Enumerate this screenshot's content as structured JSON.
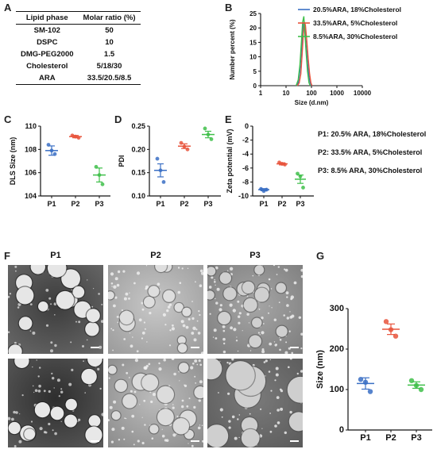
{
  "panels": {
    "A": "A",
    "B": "B",
    "C": "C",
    "D": "D",
    "E": "E",
    "F": "F",
    "G": "G"
  },
  "tableA": {
    "headers": [
      "Lipid phase",
      "Molar ratio (%)"
    ],
    "rows": [
      [
        "SM-102",
        "50"
      ],
      [
        "DSPC",
        "10"
      ],
      [
        "DMG-PEG2000",
        "1.5"
      ],
      [
        "Cholesterol",
        "5/18/30"
      ],
      [
        "ARA",
        "33.5/20.5/8.5"
      ]
    ]
  },
  "legendE": {
    "p1": "P1: 20.5% ARA, 18%Cholesterol",
    "p2": "P2: 33.5% ARA, 5%Cholesterol",
    "p3": "P3: 8.5% ARA, 30%Cholesterol"
  },
  "temF": {
    "labels": [
      "P1",
      "P2",
      "P3"
    ]
  },
  "colors": {
    "blue": "#3a6fc4",
    "red": "#e8543c",
    "green": "#3fbf4a"
  },
  "chart_data": [
    {
      "id": "B",
      "type": "line",
      "xlabel": "Size (d.nm)",
      "ylabel": "Number percent (%)",
      "xscale": "log",
      "xlim": [
        1,
        10000
      ],
      "ylim": [
        0,
        25
      ],
      "xticks": [
        "1",
        "10",
        "100",
        "1000",
        "10000"
      ],
      "yticks": [
        "0",
        "5",
        "10",
        "15",
        "20",
        "25"
      ],
      "legend_position": "top-right",
      "series": [
        {
          "name": "20.5%ARA, 18%Cholesterol",
          "color": "#3a6fc4",
          "x": [
            25,
            30,
            35,
            40,
            45,
            50,
            55,
            60,
            70,
            80,
            90,
            100
          ],
          "y": [
            0,
            1,
            5,
            12,
            19,
            22,
            20,
            15,
            8,
            3,
            1,
            0
          ]
        },
        {
          "name": "33.5%ARA, 5%Cholesterol",
          "color": "#e8543c",
          "x": [
            28,
            33,
            38,
            43,
            48,
            53,
            58,
            65,
            75,
            85,
            95,
            105
          ],
          "y": [
            0,
            1,
            4,
            11,
            18,
            22,
            21,
            16,
            9,
            4,
            1,
            0
          ]
        },
        {
          "name": "8.5%ARA, 30%Cholesterol",
          "color": "#3fbf4a",
          "x": [
            25,
            30,
            35,
            40,
            45,
            50,
            55,
            62,
            70,
            80,
            90
          ],
          "y": [
            0,
            2,
            7,
            15,
            22,
            24,
            18,
            11,
            5,
            1,
            0
          ]
        }
      ]
    },
    {
      "id": "C",
      "type": "scatter",
      "ylabel": "DLS Size (nm)",
      "ylim": [
        104,
        110
      ],
      "yticks": [
        "104",
        "106",
        "108",
        "110"
      ],
      "categories": [
        "P1",
        "P2",
        "P3"
      ],
      "points": [
        [
          108.4,
          107.9,
          107.6
        ],
        [
          109.2,
          109.1,
          109.0
        ],
        [
          106.5,
          105.8,
          105.0
        ]
      ],
      "mean": [
        107.9,
        109.1,
        105.8
      ],
      "sem": [
        0.4,
        0.1,
        0.6
      ]
    },
    {
      "id": "D",
      "type": "scatter",
      "ylabel": "PDI",
      "ylim": [
        0.1,
        0.25
      ],
      "yticks": [
        "0.10",
        "0.15",
        "0.20",
        "0.25"
      ],
      "categories": [
        "P1",
        "P2",
        "P3"
      ],
      "points": [
        [
          0.18,
          0.155,
          0.13
        ],
        [
          0.214,
          0.206,
          0.2
        ],
        [
          0.245,
          0.232,
          0.222
        ]
      ],
      "mean": [
        0.155,
        0.207,
        0.232
      ],
      "sem": [
        0.014,
        0.005,
        0.007
      ]
    },
    {
      "id": "E",
      "type": "scatter",
      "ylabel": "Zeta potential (mV)",
      "ylim": [
        -10,
        0
      ],
      "yticks": [
        "-10",
        "-8",
        "-6",
        "-4",
        "-2",
        "0"
      ],
      "categories": [
        "P1",
        "P2",
        "P3"
      ],
      "points": [
        [
          -9.0,
          -9.3,
          -9.1
        ],
        [
          -5.2,
          -5.4,
          -5.5
        ],
        [
          -6.8,
          -7.2,
          -8.8
        ]
      ],
      "mean": [
        -9.1,
        -5.4,
        -7.6
      ],
      "sem": [
        0.15,
        0.15,
        0.6
      ]
    },
    {
      "id": "G",
      "type": "scatter",
      "ylabel": "Size (nm)",
      "ylim": [
        0,
        300
      ],
      "yticks": [
        "0",
        "100",
        "200",
        "300"
      ],
      "categories": [
        "P1",
        "P2",
        "P3"
      ],
      "points": [
        [
          125,
          118,
          95
        ],
        [
          268,
          248,
          232
        ],
        [
          122,
          110,
          100
        ]
      ],
      "mean": [
        115,
        249,
        111
      ],
      "sem": [
        14,
        13,
        8
      ]
    }
  ]
}
